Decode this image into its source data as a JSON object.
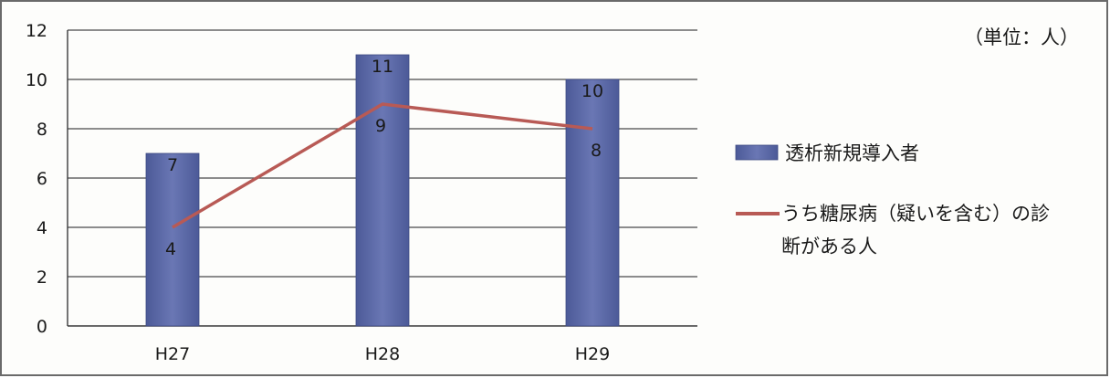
{
  "unit_label": "（単位：人）",
  "chart_data": {
    "type": "bar",
    "categories": [
      "H27",
      "H28",
      "H29"
    ],
    "ylim": [
      0,
      12
    ],
    "yticks": [
      0,
      2,
      4,
      6,
      8,
      10,
      12
    ],
    "grid": true,
    "legend_position": "right",
    "series": [
      {
        "name": "透析新規導入者",
        "type": "bar",
        "values": [
          7,
          11,
          10
        ],
        "color": "#5a67a6"
      },
      {
        "name_lines": [
          "うち糖尿病（疑いを含む）の診",
          "断がある人"
        ],
        "type": "line",
        "values": [
          4,
          9,
          8
        ],
        "color": "#b85a55"
      }
    ]
  }
}
